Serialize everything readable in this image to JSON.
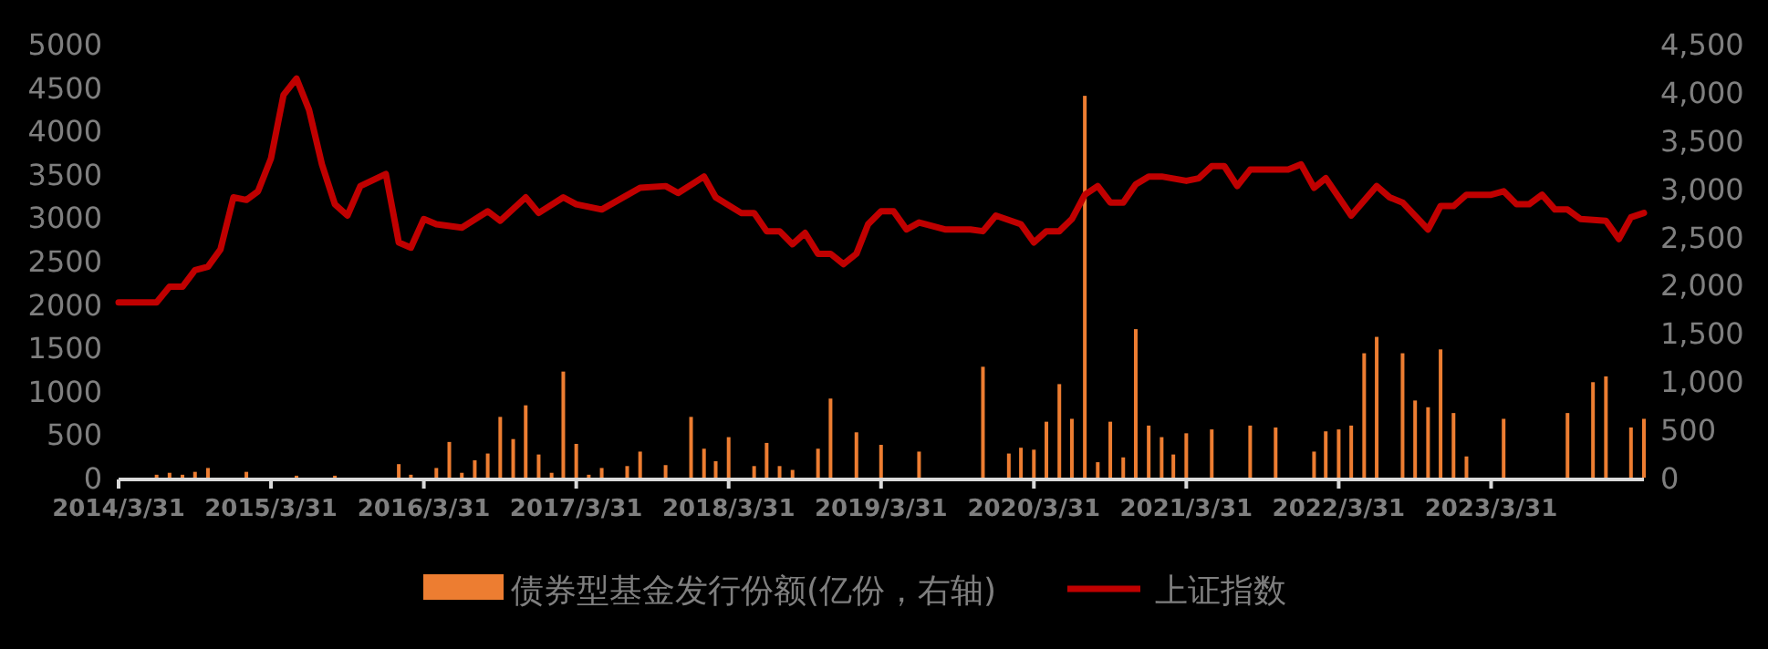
{
  "chart_data": {
    "type": "bar",
    "xlim": [
      "2014-03-31",
      "2024-03-31"
    ],
    "xticks": [
      {
        "value": "2014-03-31",
        "label": "2014/3/31"
      },
      {
        "value": "2015-03-31",
        "label": "2015/3/31"
      },
      {
        "value": "2016-03-31",
        "label": "2016/3/31"
      },
      {
        "value": "2017-03-31",
        "label": "2017/3/31"
      },
      {
        "value": "2018-03-31",
        "label": "2018/3/31"
      },
      {
        "value": "2019-03-31",
        "label": "2019/3/31"
      },
      {
        "value": "2020-03-31",
        "label": "2020/3/31"
      },
      {
        "value": "2021-03-31",
        "label": "2021/3/31"
      },
      {
        "value": "2022-03-31",
        "label": "2022/3/31"
      },
      {
        "value": "2023-03-31",
        "label": "2023/3/31"
      }
    ],
    "ylim": [
      0,
      5000
    ],
    "yticks": [
      0,
      500,
      1000,
      1500,
      2000,
      2500,
      3000,
      3500,
      4000,
      4500,
      5000
    ],
    "y2lim": [
      0,
      4500
    ],
    "y2ticks": [
      0,
      500,
      {
        "value": 1000,
        "label": "1,000"
      },
      {
        "value": 1500,
        "label": "1,500"
      },
      {
        "value": 2000,
        "label": "2,000"
      },
      {
        "value": 2500,
        "label": "2,500"
      },
      {
        "value": 3000,
        "label": "3,000"
      },
      {
        "value": 3500,
        "label": "3,500"
      },
      {
        "value": 4000,
        "label": "4,000"
      },
      {
        "value": 4500,
        "label": "4,500"
      }
    ],
    "legend": "bottom",
    "series": [
      {
        "name": "债券型基金发行份额(亿份，右轴)",
        "axis": "y2",
        "color": "#ed7d31",
        "x": [
          "2014-06-30",
          "2014-07-31",
          "2014-08-31",
          "2014-09-30",
          "2014-10-31",
          "2015-01-31",
          "2015-05-31",
          "2015-08-31",
          "2016-01-31",
          "2016-02-29",
          "2016-04-30",
          "2016-05-31",
          "2016-06-30",
          "2016-07-31",
          "2016-08-31",
          "2016-09-30",
          "2016-10-31",
          "2016-11-30",
          "2016-12-31",
          "2017-01-31",
          "2017-02-28",
          "2017-03-31",
          "2017-04-30",
          "2017-05-31",
          "2017-07-31",
          "2017-08-31",
          "2017-10-31",
          "2017-12-31",
          "2018-01-31",
          "2018-02-28",
          "2018-03-31",
          "2018-05-31",
          "2018-06-30",
          "2018-07-31",
          "2018-08-31",
          "2018-10-31",
          "2018-11-30",
          "2019-01-31",
          "2019-03-31",
          "2019-06-30",
          "2019-11-30",
          "2020-01-31",
          "2020-02-29",
          "2020-03-31",
          "2020-04-30",
          "2020-05-31",
          "2020-06-30",
          "2020-07-31",
          "2020-08-31",
          "2020-09-30",
          "2020-10-31",
          "2020-11-30",
          "2020-12-31",
          "2021-01-31",
          "2021-02-28",
          "2021-03-31",
          "2021-05-31",
          "2021-08-31",
          "2021-10-31",
          "2022-01-31",
          "2022-02-28",
          "2022-03-31",
          "2022-04-30",
          "2022-05-31",
          "2022-06-30",
          "2022-08-31",
          "2022-09-30",
          "2022-10-31",
          "2022-11-30",
          "2022-12-31",
          "2023-01-31",
          "2023-04-30",
          "2023-09-30",
          "2023-11-30",
          "2023-12-31",
          "2024-02-29",
          "2024-03-31"
        ],
        "values": [
          30,
          50,
          30,
          60,
          100,
          60,
          20,
          20,
          140,
          30,
          100,
          370,
          50,
          180,
          250,
          630,
          400,
          750,
          240,
          50,
          1100,
          350,
          30,
          100,
          120,
          270,
          130,
          630,
          300,
          170,
          420,
          120,
          360,
          120,
          80,
          300,
          820,
          470,
          340,
          270,
          1150,
          250,
          310,
          290,
          580,
          970,
          610,
          3960,
          160,
          580,
          210,
          1540,
          540,
          420,
          240,
          460,
          500,
          540,
          520,
          270,
          480,
          500,
          540,
          1290,
          1460,
          1290,
          800,
          730,
          1330,
          670,
          220,
          610,
          670,
          990,
          1050,
          520,
          610
        ]
      },
      {
        "name": "上证指数",
        "type": "line",
        "color": "#c00000",
        "x": [
          "2014-03-31",
          "2014-06-30",
          "2014-07-31",
          "2014-08-31",
          "2014-09-30",
          "2014-10-31",
          "2014-11-30",
          "2014-12-31",
          "2015-01-31",
          "2015-02-28",
          "2015-03-31",
          "2015-04-30",
          "2015-05-31",
          "2015-06-30",
          "2015-07-31",
          "2015-08-31",
          "2015-09-30",
          "2015-10-31",
          "2015-12-31",
          "2016-01-31",
          "2016-02-29",
          "2016-03-31",
          "2016-04-30",
          "2016-06-30",
          "2016-08-31",
          "2016-09-30",
          "2016-11-30",
          "2016-12-31",
          "2017-02-28",
          "2017-03-31",
          "2017-05-31",
          "2017-08-31",
          "2017-10-31",
          "2017-11-30",
          "2018-01-31",
          "2018-02-28",
          "2018-04-30",
          "2018-05-31",
          "2018-06-30",
          "2018-07-31",
          "2018-08-31",
          "2018-09-30",
          "2018-10-31",
          "2018-11-30",
          "2018-12-31",
          "2019-01-31",
          "2019-02-28",
          "2019-03-31",
          "2019-04-30",
          "2019-05-31",
          "2019-06-30",
          "2019-08-31",
          "2019-10-31",
          "2019-11-30",
          "2019-12-31",
          "2020-02-29",
          "2020-03-31",
          "2020-04-30",
          "2020-05-31",
          "2020-06-30",
          "2020-07-31",
          "2020-08-31",
          "2020-09-30",
          "2020-10-31",
          "2020-11-30",
          "2020-12-31",
          "2021-01-31",
          "2021-03-31",
          "2021-04-30",
          "2021-05-31",
          "2021-06-30",
          "2021-07-31",
          "2021-08-31",
          "2021-10-31",
          "2021-11-30",
          "2021-12-31",
          "2022-01-31",
          "2022-02-28",
          "2022-04-30",
          "2022-06-30",
          "2022-07-31",
          "2022-08-31",
          "2022-10-31",
          "2022-11-30",
          "2022-12-31",
          "2023-01-31",
          "2023-03-31",
          "2023-04-30",
          "2023-05-31",
          "2023-06-30",
          "2023-07-31",
          "2023-08-31",
          "2023-09-30",
          "2023-10-31",
          "2023-12-31",
          "2024-01-31",
          "2024-02-29",
          "2024-03-31"
        ],
        "values": [
          2020,
          2020,
          2200,
          2200,
          2390,
          2430,
          2630,
          3230,
          3200,
          3300,
          3680,
          4410,
          4600,
          4240,
          3610,
          3150,
          3020,
          3360,
          3500,
          2710,
          2650,
          2980,
          2920,
          2880,
          3070,
          2960,
          3230,
          3050,
          3230,
          3150,
          3090,
          3340,
          3360,
          3280,
          3470,
          3230,
          3050,
          3050,
          2840,
          2840,
          2690,
          2820,
          2580,
          2580,
          2460,
          2580,
          2920,
          3070,
          3070,
          2860,
          2940,
          2860,
          2860,
          2840,
          3020,
          2920,
          2710,
          2840,
          2840,
          2980,
          3260,
          3360,
          3170,
          3170,
          3380,
          3470,
          3470,
          3420,
          3450,
          3590,
          3590,
          3360,
          3550,
          3550,
          3550,
          3610,
          3340,
          3450,
          3020,
          3360,
          3230,
          3170,
          2860,
          3130,
          3130,
          3260,
          3260,
          3300,
          3150,
          3150,
          3260,
          3090,
          3090,
          2980,
          2960,
          2750,
          3000,
          3050
        ]
      }
    ]
  }
}
